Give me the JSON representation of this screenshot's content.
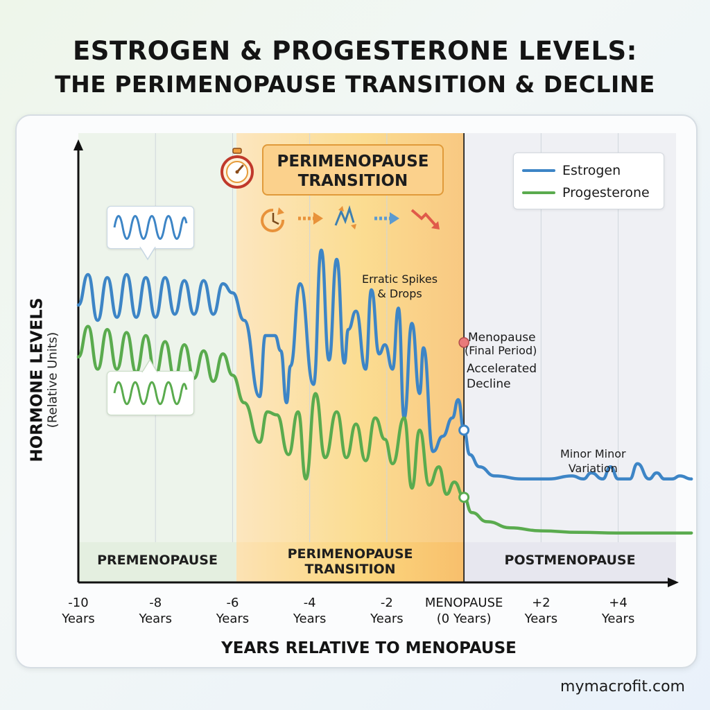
{
  "title": {
    "line1": "ESTROGEN & PROGESTERONE LEVELS:",
    "line2": "THE PERIMENOPAUSE TRANSITION & DECLINE"
  },
  "footer": "mymacrofit.com",
  "colors": {
    "estrogen": "#3d85c6",
    "progesterone": "#5aab4e",
    "premenopause_band": "#e4efe0",
    "perimenopause_band": "#fbd79a",
    "postmenopause_band": "#e7e7ef",
    "menopause_marker": "#e97a7a"
  },
  "icons": [
    "stopwatch-icon",
    "cycle-icon",
    "arrow-right-icon",
    "erratic-arrows-icon",
    "arrow-right-icon",
    "down-trend-icon"
  ],
  "chart_data": {
    "type": "line",
    "title": "ESTROGEN & PROGESTERONE LEVELS: THE PERIMENOPAUSE TRANSITION & DECLINE",
    "xlabel": "YEARS RELATIVE TO MENOPAUSE",
    "ylabel": "HORMONE LEVELS",
    "ylabel_sub": "(Relative Units)",
    "xlim": [
      -10,
      5.5
    ],
    "ylim": [
      0,
      100
    ],
    "x_ticks": [
      {
        "x": -10,
        "label": "-10\nYears"
      },
      {
        "x": -8,
        "label": "-8\nYears"
      },
      {
        "x": -6,
        "label": "-6\nYears"
      },
      {
        "x": -4,
        "label": "-4\nYears"
      },
      {
        "x": -2,
        "label": "-2\nYears"
      },
      {
        "x": 0,
        "label": "MENOPAUSE\n(0 Years)"
      },
      {
        "x": 2,
        "label": "+2\nYears"
      },
      {
        "x": 4,
        "label": "+4\nYears"
      }
    ],
    "legend_position": "top-right",
    "grid": true,
    "phases": [
      {
        "label": "PREMENOPAUSE",
        "start": -10,
        "end": -5.9
      },
      {
        "label": "PERIMENOPAUSE\nTRANSITION",
        "start": -5.9,
        "end": 0
      },
      {
        "label": "POSTMENOPAUSE",
        "start": 0,
        "end": 5.9
      }
    ],
    "banner": "PERIMENOPAUSE\nTRANSITION",
    "series": [
      {
        "name": "Estrogen",
        "x": [
          -10,
          -9.75,
          -9.5,
          -9.25,
          -9,
          -8.75,
          -8.5,
          -8.25,
          -8,
          -7.75,
          -7.5,
          -7.25,
          -7,
          -6.75,
          -6.5,
          -6.25,
          -6,
          -5.7,
          -5.3,
          -5.15,
          -4.9,
          -4.75,
          -4.6,
          -4.5,
          -4.25,
          -3.9,
          -3.7,
          -3.5,
          -3.3,
          -3.1,
          -3.0,
          -2.8,
          -2.55,
          -2.4,
          -2.2,
          -2.05,
          -1.85,
          -1.7,
          -1.55,
          -1.35,
          -1.15,
          -1.05,
          -0.8,
          -0.55,
          -0.3,
          -0.15,
          0,
          0.15,
          0.4,
          0.8,
          1.5,
          2.2,
          2.8,
          3.1,
          3.3,
          3.6,
          3.8,
          4.0,
          4.3,
          4.5,
          4.8,
          5.0,
          5.2,
          5.4,
          5.6,
          5.9
        ],
        "y": [
          75,
          85,
          70,
          84,
          71,
          85,
          71,
          84,
          71,
          84,
          72,
          83,
          72,
          83,
          72,
          82,
          79,
          70,
          45,
          65,
          65,
          60,
          43,
          55,
          82,
          49,
          93,
          57,
          90,
          56,
          67,
          73,
          54,
          80,
          59,
          62,
          54,
          74,
          38,
          69,
          46,
          61,
          27,
          32,
          38,
          44,
          34,
          26,
          22,
          19,
          18,
          18,
          19,
          18,
          20,
          18,
          22,
          18,
          18,
          23,
          18,
          20,
          18,
          18,
          19,
          18
        ]
      },
      {
        "name": "Progesterone",
        "x": [
          -10,
          -9.75,
          -9.5,
          -9.25,
          -9,
          -8.75,
          -8.5,
          -8.25,
          -8,
          -7.75,
          -7.5,
          -7.25,
          -7,
          -6.75,
          -6.5,
          -6.25,
          -6,
          -5.7,
          -5.3,
          -5.1,
          -4.85,
          -4.55,
          -4.3,
          -4.1,
          -3.85,
          -3.6,
          -3.3,
          -3.05,
          -2.8,
          -2.55,
          -2.3,
          -2.05,
          -1.85,
          -1.55,
          -1.35,
          -1.15,
          -0.9,
          -0.65,
          -0.45,
          -0.25,
          0,
          0.2,
          0.6,
          1.2,
          2,
          3,
          4,
          5,
          5.9
        ],
        "y": [
          58,
          68,
          54,
          67,
          54,
          66,
          53,
          65,
          52,
          63,
          51,
          62,
          51,
          60,
          50,
          59,
          52,
          43,
          30,
          40,
          39,
          26,
          40,
          18,
          46,
          25,
          40,
          25,
          36,
          24,
          38,
          31,
          23,
          38,
          15,
          34,
          16,
          22,
          13,
          17,
          12,
          7,
          4,
          2,
          1,
          0.5,
          0.3,
          0.3,
          0.3
        ]
      }
    ],
    "markers": [
      {
        "label": "Menopause",
        "sub": "(Final Period)",
        "x": 0
      },
      {
        "series": "Estrogen",
        "x": 0,
        "y": 34
      },
      {
        "series": "Progesterone",
        "x": 0,
        "y": 12
      }
    ],
    "annotations": [
      {
        "text": "Erratic Spikes\n& Drops"
      },
      {
        "text": "Menopause"
      },
      {
        "text": "(Final Period)"
      },
      {
        "text": "Accelerated\nDecline"
      },
      {
        "text": "Minor Minor\nVariation"
      }
    ]
  }
}
